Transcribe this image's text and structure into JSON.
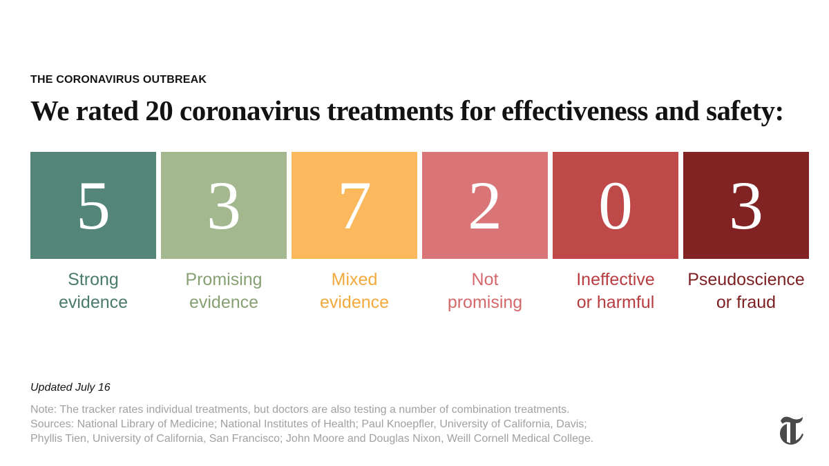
{
  "kicker": "THE CORONAVIRUS OUTBREAK",
  "title": "We rated 20 coronavirus treatments for effectiveness and safety:",
  "cards": [
    {
      "number": "5",
      "label": [
        "Strong",
        "evidence"
      ],
      "color": "#538679",
      "text_color": "#4a7a6d"
    },
    {
      "number": "3",
      "label": [
        "Promising",
        "evidence"
      ],
      "color": "#a3b88f",
      "text_color": "#87a073"
    },
    {
      "number": "7",
      "label": [
        "Mixed",
        "evidence"
      ],
      "color": "#fbb85d",
      "text_color": "#f3a93c"
    },
    {
      "number": "2",
      "label": [
        "Not",
        "promising"
      ],
      "color": "#da7577",
      "text_color": "#d4686b"
    },
    {
      "number": "0",
      "label": [
        "Ineffective",
        "or harmful"
      ],
      "color": "#bf4849",
      "text_color": "#b83d40"
    },
    {
      "number": "3",
      "label": [
        "Pseudoscience",
        "or fraud"
      ],
      "color": "#812223",
      "text_color": "#7d1f22"
    }
  ],
  "updated": "Updated July 16",
  "notes": [
    "Note: The tracker rates individual treatments, but doctors are also testing a number of combination treatments.",
    "Sources: National Library of Medicine; National Institutes of Health; Paul Knoepfler, University of California, Davis;",
    "Phyllis Tien, University of California, San Francisco; John Moore and Douglas Nixon, Weill Cornell Medical College."
  ]
}
